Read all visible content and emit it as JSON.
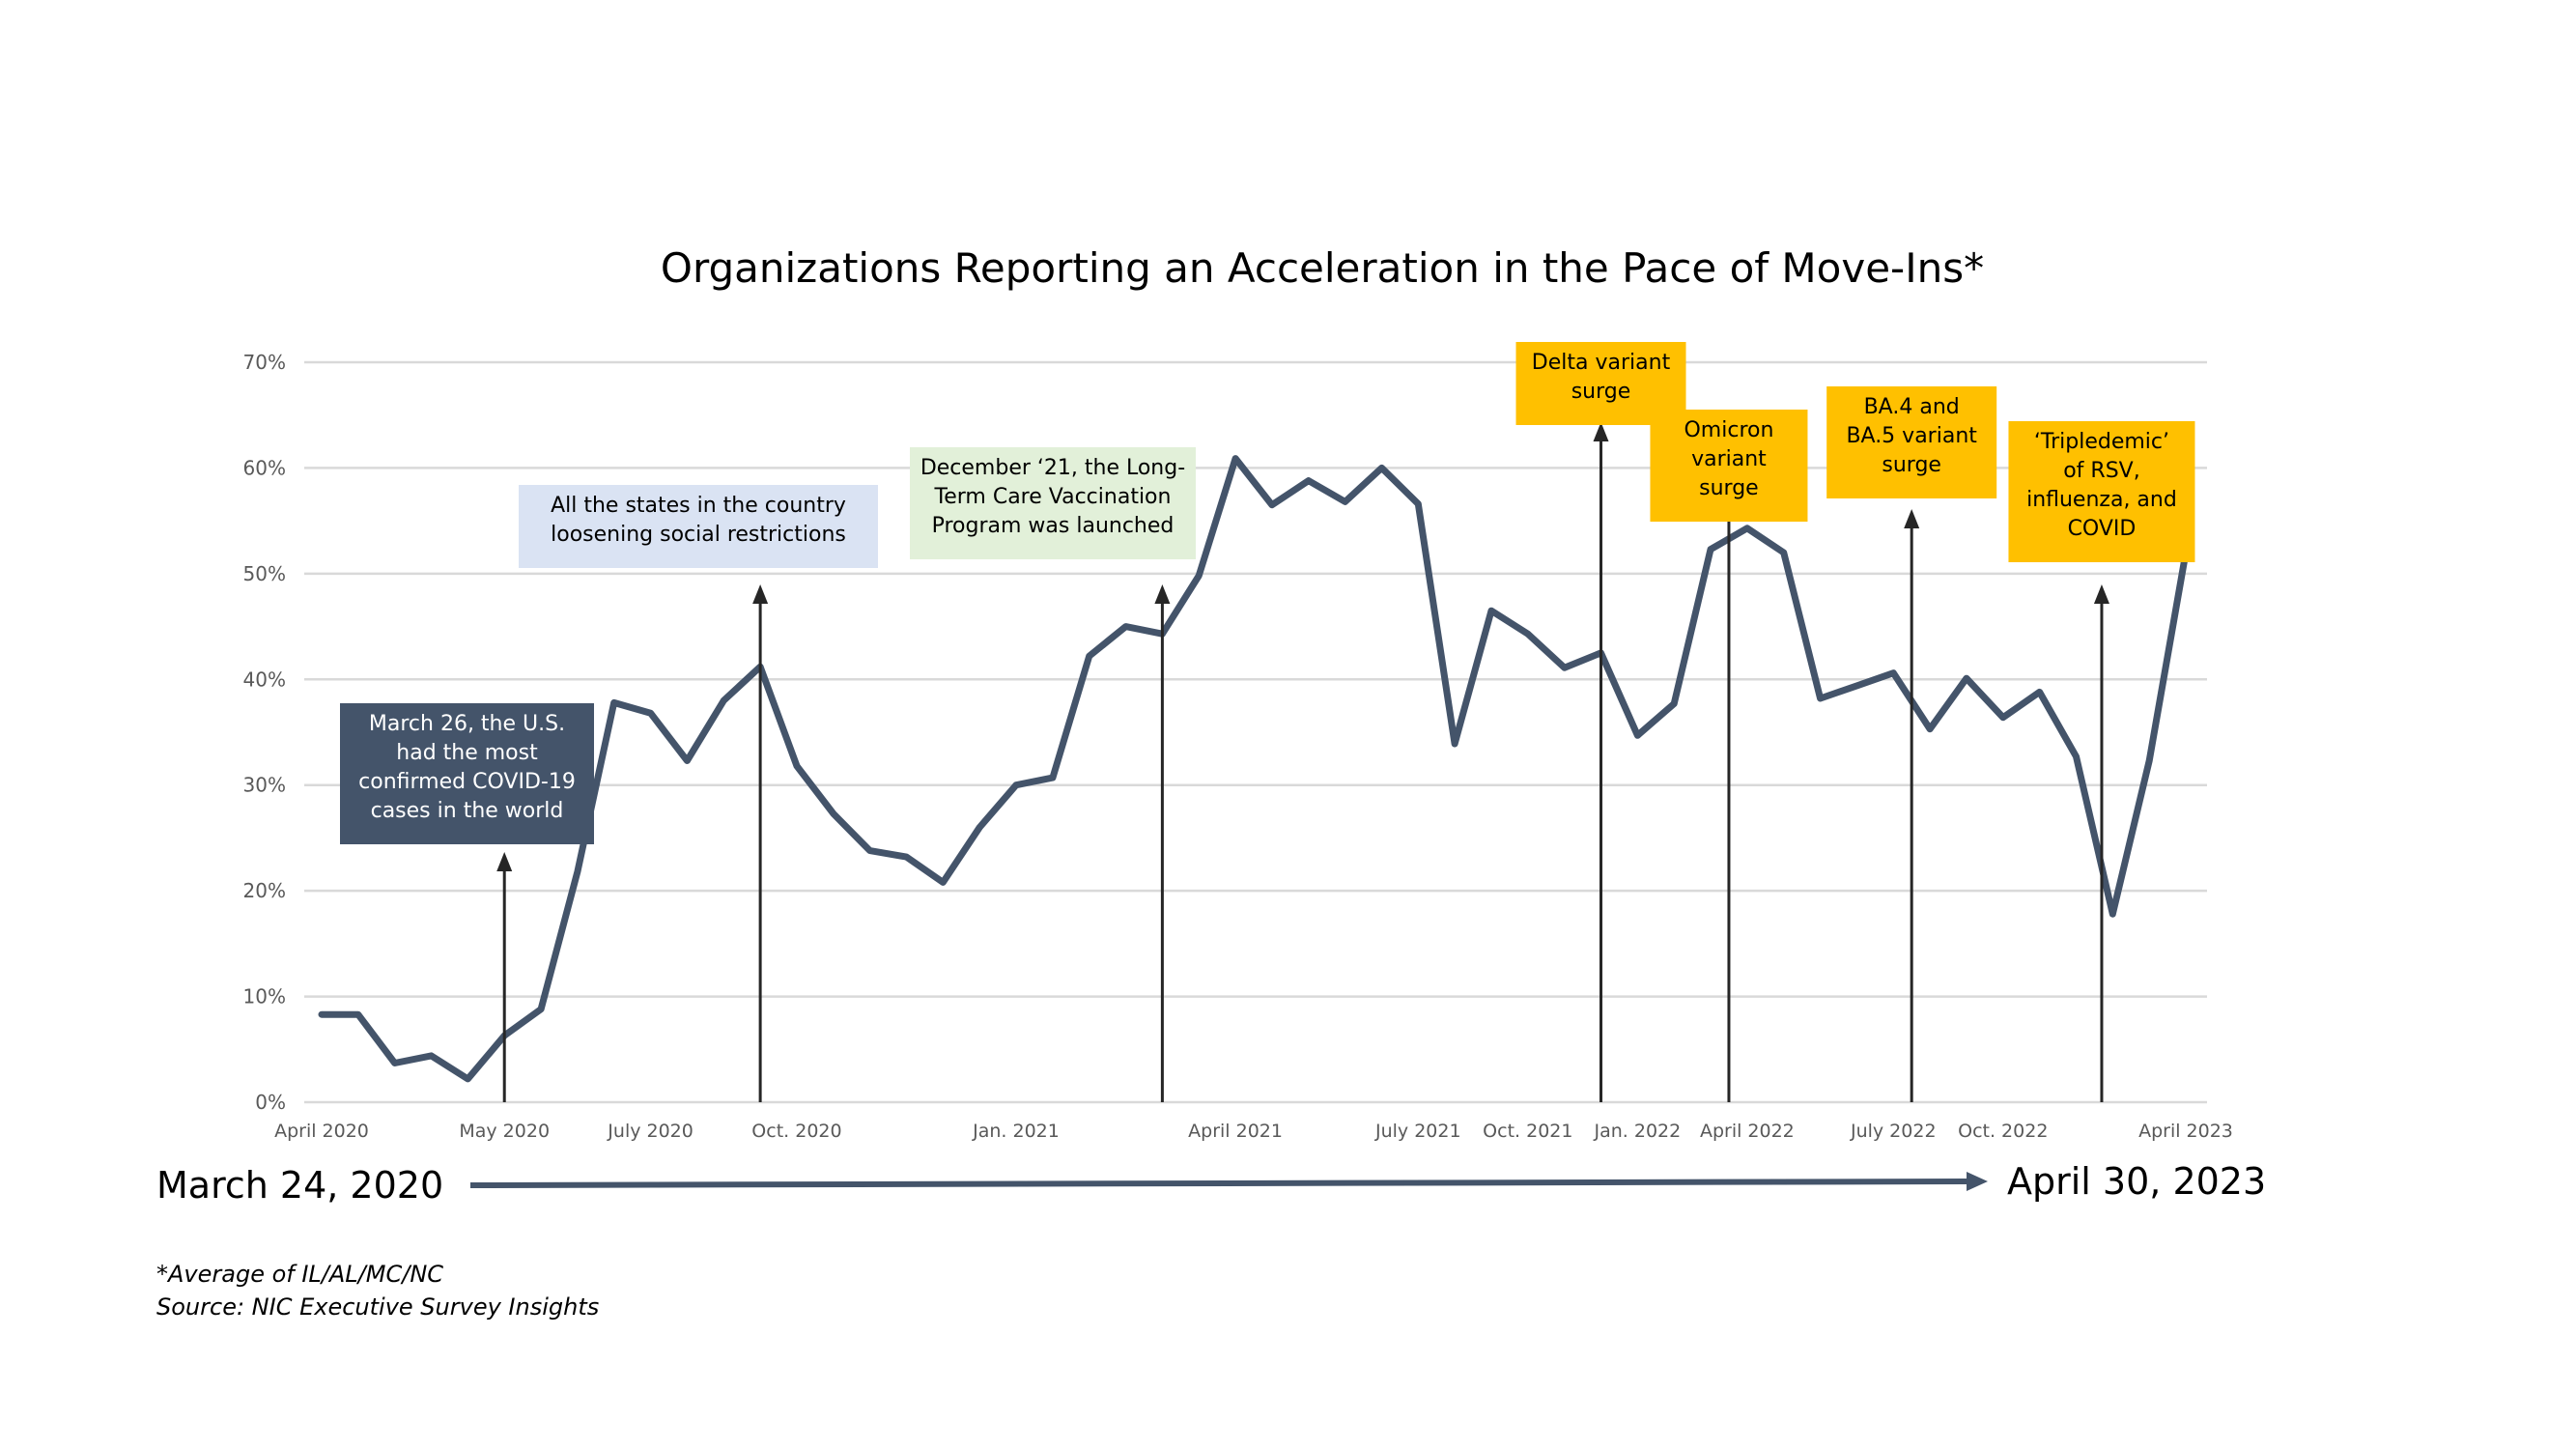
{
  "chart_data": {
    "type": "line",
    "title": "Organizations Reporting an Acceleration in the Pace of Move-Ins*",
    "xlabel": "",
    "ylabel": "",
    "ylim": [
      0,
      70
    ],
    "y_ticks": [
      "0%",
      "10%",
      "20%",
      "30%",
      "40%",
      "50%",
      "60%",
      "70%"
    ],
    "y_tick_values": [
      0,
      10,
      20,
      30,
      40,
      50,
      60,
      70
    ],
    "x_tick_labels": [
      {
        "label": "April 2020",
        "index": 0
      },
      {
        "label": "May 2020",
        "index": 5
      },
      {
        "label": "July 2020",
        "index": 9
      },
      {
        "label": "Oct. 2020",
        "index": 13
      },
      {
        "label": "Jan. 2021",
        "index": 19
      },
      {
        "label": "April 2021",
        "index": 25
      },
      {
        "label": "July 2021",
        "index": 30
      },
      {
        "label": "Oct. 2021",
        "index": 33
      },
      {
        "label": "Jan. 2022",
        "index": 36
      },
      {
        "label": "April 2022",
        "index": 39
      },
      {
        "label": "July 2022",
        "index": 43
      },
      {
        "label": "Oct. 2022",
        "index": 46
      },
      {
        "label": "April 2023",
        "index": 51
      }
    ],
    "grid": true,
    "legend": "none",
    "line_color": "#44546a",
    "series": [
      {
        "values": [
          8.3,
          8.3,
          3.7,
          4.4,
          2.2,
          6.3,
          8.8,
          21.8,
          37.8,
          36.8,
          32.3,
          38.0,
          41.2,
          31.8,
          27.3,
          23.8,
          23.2,
          20.8,
          26.0,
          30.0,
          30.7,
          42.2,
          45.0,
          44.3,
          49.8,
          60.9,
          56.5,
          58.8,
          56.8,
          60.0,
          56.6,
          33.9,
          46.5,
          44.3,
          41.1,
          42.5,
          34.7,
          37.7,
          52.3,
          54.3,
          52.0,
          38.2,
          39.4,
          40.6,
          35.3,
          40.1,
          36.4,
          38.8,
          32.7,
          17.8,
          32.3,
          52.0
        ]
      }
    ],
    "annotations": [
      {
        "text": [
          "March 26, the U.S.",
          "had the most",
          "confirmed COVID-19",
          "cases in the world"
        ],
        "index": 5,
        "bg": "#44546a",
        "fg": "#ffffff"
      },
      {
        "text": [
          "All the states in the country",
          "loosening social restrictions"
        ],
        "index": 12,
        "bg": "#dae3f3",
        "fg": "#000000"
      },
      {
        "text": [
          "December ‘21, the Long-",
          "Term Care Vaccination",
          "Program was launched"
        ],
        "index": 23,
        "bg": "#e2f0d9",
        "fg": "#000000"
      },
      {
        "text": [
          "Delta variant",
          "surge"
        ],
        "index": 35,
        "bg": "#ffc000",
        "fg": "#000000"
      },
      {
        "text": [
          "Omicron",
          "variant",
          "surge"
        ],
        "index": 38.5,
        "bg": "#ffc000",
        "fg": "#000000"
      },
      {
        "text": [
          "BA.4 and",
          "BA.5 variant",
          "surge"
        ],
        "index": 43.5,
        "bg": "#ffc000",
        "fg": "#000000"
      },
      {
        "text": [
          "‘Tripledemic’",
          "of RSV,",
          "influenza, and",
          "COVID"
        ],
        "index": 48.7,
        "bg": "#ffc000",
        "fg": "#000000"
      }
    ]
  },
  "timeline": {
    "start": "March 24, 2020",
    "end": "April 30, 2023"
  },
  "footnotes": [
    "*Average of IL/AL/MC/NC",
    "Source: NIC Executive Survey Insights"
  ]
}
